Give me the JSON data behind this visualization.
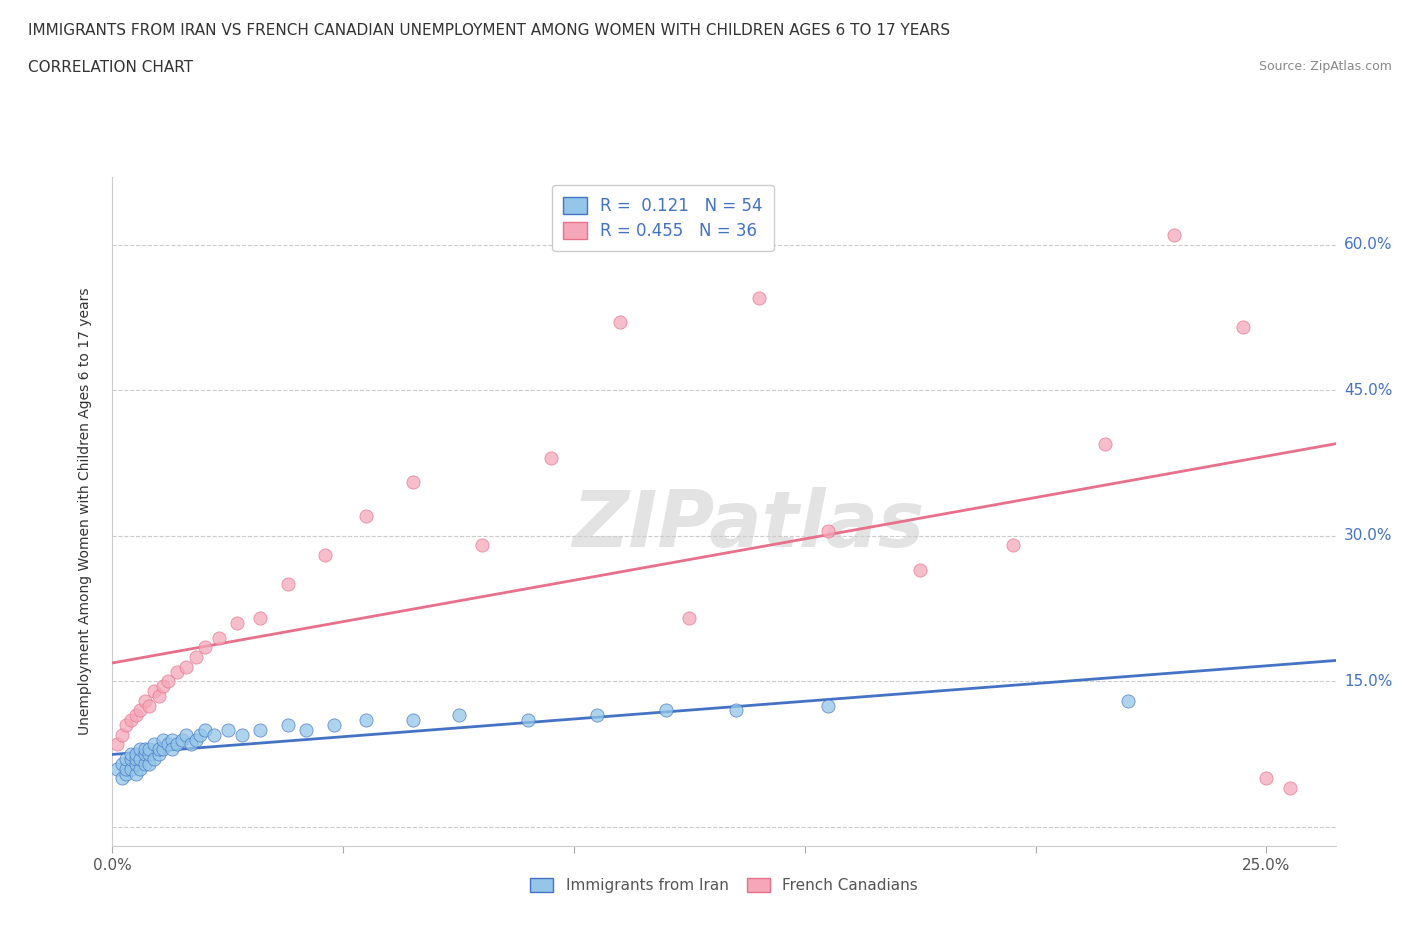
{
  "title": "IMMIGRANTS FROM IRAN VS FRENCH CANADIAN UNEMPLOYMENT AMONG WOMEN WITH CHILDREN AGES 6 TO 17 YEARS",
  "subtitle": "CORRELATION CHART",
  "source": "Source: ZipAtlas.com",
  "ylabel": "Unemployment Among Women with Children Ages 6 to 17 years",
  "xlim": [
    0.0,
    0.265
  ],
  "ylim": [
    -0.02,
    0.67
  ],
  "x_ticks": [
    0.0,
    0.05,
    0.1,
    0.15,
    0.2,
    0.25
  ],
  "x_tick_labels": [
    "0.0%",
    "",
    "",
    "",
    "",
    "25.0%"
  ],
  "y_ticks": [
    0.0,
    0.15,
    0.3,
    0.45,
    0.6
  ],
  "y_right_labels": [
    "",
    "15.0%",
    "30.0%",
    "45.0%",
    "60.0%"
  ],
  "watermark": "ZIPatlas",
  "legend_R1": "0.121",
  "legend_N1": "54",
  "legend_R2": "0.455",
  "legend_N2": "36",
  "color_iran": "#93C6E8",
  "color_french": "#F4A7B9",
  "trendline_color_iran": "#4472C4",
  "trendline_color_french": "#E8708A",
  "iran_x": [
    0.001,
    0.002,
    0.002,
    0.003,
    0.003,
    0.003,
    0.004,
    0.004,
    0.004,
    0.005,
    0.005,
    0.005,
    0.005,
    0.006,
    0.006,
    0.006,
    0.007,
    0.007,
    0.007,
    0.008,
    0.008,
    0.008,
    0.009,
    0.009,
    0.01,
    0.01,
    0.011,
    0.011,
    0.012,
    0.013,
    0.013,
    0.014,
    0.015,
    0.016,
    0.017,
    0.018,
    0.019,
    0.02,
    0.022,
    0.025,
    0.028,
    0.032,
    0.038,
    0.042,
    0.048,
    0.055,
    0.065,
    0.075,
    0.09,
    0.105,
    0.12,
    0.135,
    0.155,
    0.22
  ],
  "iran_y": [
    0.06,
    0.05,
    0.065,
    0.055,
    0.06,
    0.07,
    0.06,
    0.07,
    0.075,
    0.055,
    0.065,
    0.07,
    0.075,
    0.06,
    0.07,
    0.08,
    0.065,
    0.075,
    0.08,
    0.065,
    0.075,
    0.08,
    0.07,
    0.085,
    0.075,
    0.08,
    0.08,
    0.09,
    0.085,
    0.09,
    0.08,
    0.085,
    0.09,
    0.095,
    0.085,
    0.09,
    0.095,
    0.1,
    0.095,
    0.1,
    0.095,
    0.1,
    0.105,
    0.1,
    0.105,
    0.11,
    0.11,
    0.115,
    0.11,
    0.115,
    0.12,
    0.12,
    0.125,
    0.13
  ],
  "french_x": [
    0.001,
    0.002,
    0.003,
    0.004,
    0.005,
    0.006,
    0.007,
    0.008,
    0.009,
    0.01,
    0.011,
    0.012,
    0.014,
    0.016,
    0.018,
    0.02,
    0.023,
    0.027,
    0.032,
    0.038,
    0.046,
    0.055,
    0.065,
    0.08,
    0.095,
    0.11,
    0.125,
    0.14,
    0.155,
    0.175,
    0.195,
    0.215,
    0.23,
    0.245,
    0.25,
    0.255
  ],
  "french_y": [
    0.085,
    0.095,
    0.105,
    0.11,
    0.115,
    0.12,
    0.13,
    0.125,
    0.14,
    0.135,
    0.145,
    0.15,
    0.16,
    0.165,
    0.175,
    0.185,
    0.195,
    0.21,
    0.215,
    0.25,
    0.28,
    0.32,
    0.355,
    0.29,
    0.38,
    0.52,
    0.215,
    0.545,
    0.305,
    0.265,
    0.29,
    0.395,
    0.61,
    0.515,
    0.05,
    0.04
  ]
}
